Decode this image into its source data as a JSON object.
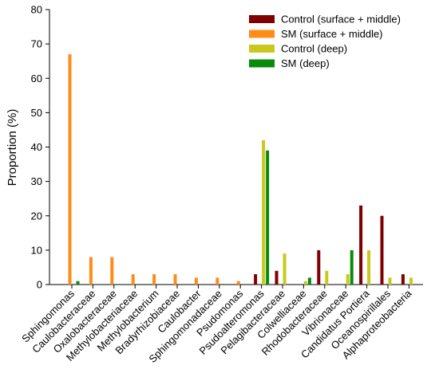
{
  "chart_data": {
    "type": "bar",
    "title": "",
    "xlabel": "",
    "ylabel": "Proportion (%)",
    "ylim": [
      0,
      80
    ],
    "yticks": [
      0,
      10,
      20,
      30,
      40,
      50,
      60,
      70,
      80
    ],
    "grid": false,
    "legend_position": "top-right",
    "categories": [
      "Sphingomonas",
      "Caulobacteraceae",
      "Oxalobacteraceae",
      "Methylobacteriaceae",
      "Methylobacterium",
      "Bradyrhizobiaceae",
      "Caulobacter",
      "Sphingomonadaceae",
      "Psudomonas",
      "Psudoalteromonas",
      "Pelagibacteraceae",
      "Colwelliaceae",
      "Rhodobacteraceae",
      "Vibrionaceae",
      "Candidatus Portiera",
      "Oceanospirillales",
      "Alphaproteobacteria"
    ],
    "series": [
      {
        "name": "Control (surface + middle)",
        "color": "#7f0000",
        "values": [
          0,
          0,
          0,
          0,
          0,
          0,
          0,
          0,
          0,
          3,
          4,
          0,
          10,
          0,
          23,
          20,
          3
        ]
      },
      {
        "name": "SM (surface + middle)",
        "color": "#ff8c1a",
        "values": [
          67,
          8,
          8,
          3,
          3,
          3,
          2,
          2,
          1,
          0,
          0,
          0,
          0,
          0,
          0,
          0,
          0
        ]
      },
      {
        "name": "Control (deep)",
        "color": "#c8c81e",
        "values": [
          0,
          0,
          0,
          0,
          0,
          0,
          0,
          0,
          0,
          42,
          9,
          1,
          4,
          3,
          10,
          2,
          2
        ]
      },
      {
        "name": "SM (deep)",
        "color": "#0a8a0a",
        "values": [
          1,
          0,
          0,
          0,
          0,
          0,
          0,
          0,
          0,
          39,
          0,
          2,
          0,
          10,
          0,
          0,
          0
        ]
      }
    ]
  }
}
